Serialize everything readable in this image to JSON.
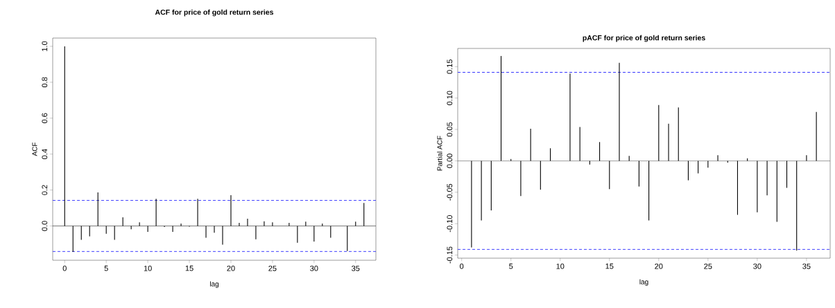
{
  "chart_data": [
    {
      "type": "bar",
      "title": "ACF for price of gold return series",
      "xlabel": "lag",
      "ylabel": "ACF",
      "color": "#000000",
      "x": [
        0,
        1,
        2,
        3,
        4,
        5,
        6,
        7,
        8,
        9,
        10,
        11,
        12,
        13,
        14,
        15,
        16,
        17,
        18,
        19,
        20,
        21,
        22,
        23,
        24,
        25,
        26,
        27,
        28,
        29,
        30,
        31,
        32,
        33,
        34,
        35,
        36
      ],
      "values": [
        1.0,
        -0.145,
        -0.077,
        -0.058,
        0.187,
        -0.044,
        -0.077,
        0.048,
        -0.019,
        0.02,
        -0.033,
        0.151,
        -0.006,
        -0.033,
        0.013,
        -0.004,
        0.151,
        -0.066,
        -0.038,
        -0.104,
        0.171,
        0.017,
        0.04,
        -0.074,
        0.026,
        0.02,
        0.0,
        0.017,
        -0.094,
        0.024,
        -0.087,
        0.013,
        -0.066,
        0.0,
        -0.14,
        0.024,
        0.128
      ],
      "xlim": [
        -1.44,
        37.44
      ],
      "ylim": [
        -0.191,
        1.046
      ],
      "xticks": [
        0,
        5,
        10,
        15,
        20,
        25,
        30,
        35
      ],
      "yticks": [
        {
          "value": 0,
          "label": "0.0"
        },
        {
          "value": 0.2,
          "label": "0.2"
        },
        {
          "value": 0.4,
          "label": "0.4"
        },
        {
          "value": 0.6,
          "label": "0.6"
        },
        {
          "value": 0.8,
          "label": "0.8"
        },
        {
          "value": 1,
          "label": "1.0"
        }
      ],
      "ref_lines": [
        {
          "axis": "y",
          "value": 0,
          "color": "#505050",
          "line_style": "solid"
        },
        {
          "axis": "y",
          "value": 0.142,
          "color": "#0000ff",
          "line_style": "dashed"
        },
        {
          "axis": "y",
          "value": -0.142,
          "color": "#0000ff",
          "line_style": "dashed"
        }
      ],
      "grid": false
    },
    {
      "type": "bar",
      "title": "pACF for price of gold return series",
      "xlabel": "lag",
      "ylabel": "Partial ACF",
      "color": "#000000",
      "x": [
        1,
        2,
        3,
        4,
        5,
        6,
        7,
        8,
        9,
        10,
        11,
        12,
        13,
        14,
        15,
        16,
        17,
        18,
        19,
        20,
        21,
        22,
        23,
        24,
        25,
        26,
        27,
        28,
        29,
        30,
        31,
        32,
        33,
        34,
        35,
        36
      ],
      "values": [
        -0.138,
        -0.095,
        -0.079,
        0.167,
        0.003,
        -0.056,
        0.051,
        -0.046,
        0.02,
        0.0,
        0.139,
        0.054,
        -0.006,
        0.03,
        -0.045,
        0.156,
        0.008,
        -0.041,
        -0.095,
        0.089,
        0.059,
        0.085,
        -0.031,
        -0.02,
        -0.011,
        0.009,
        -0.003,
        -0.086,
        0.004,
        -0.082,
        -0.055,
        -0.097,
        -0.043,
        -0.143,
        0.009,
        0.078
      ],
      "xlim": [
        -0.4,
        37.4
      ],
      "ylim": [
        -0.155,
        0.179
      ],
      "xticks": [
        0,
        5,
        10,
        15,
        20,
        25,
        30,
        35
      ],
      "yticks": [
        {
          "value": -0.15,
          "label": "-0.15"
        },
        {
          "value": -0.1,
          "label": "-0.10"
        },
        {
          "value": -0.05,
          "label": "-0.05"
        },
        {
          "value": 0,
          "label": "0.00"
        },
        {
          "value": 0.05,
          "label": "0.05"
        },
        {
          "value": 0.1,
          "label": "0.10"
        },
        0.15
      ],
      "ref_lines": [
        {
          "axis": "y",
          "value": 0,
          "color": "#505050",
          "line_style": "solid"
        },
        {
          "axis": "y",
          "value": 0.141,
          "color": "#0000ff",
          "line_style": "dashed"
        },
        {
          "axis": "y",
          "value": -0.141,
          "color": "#0000ff",
          "line_style": "dashed"
        }
      ],
      "grid": false
    }
  ]
}
